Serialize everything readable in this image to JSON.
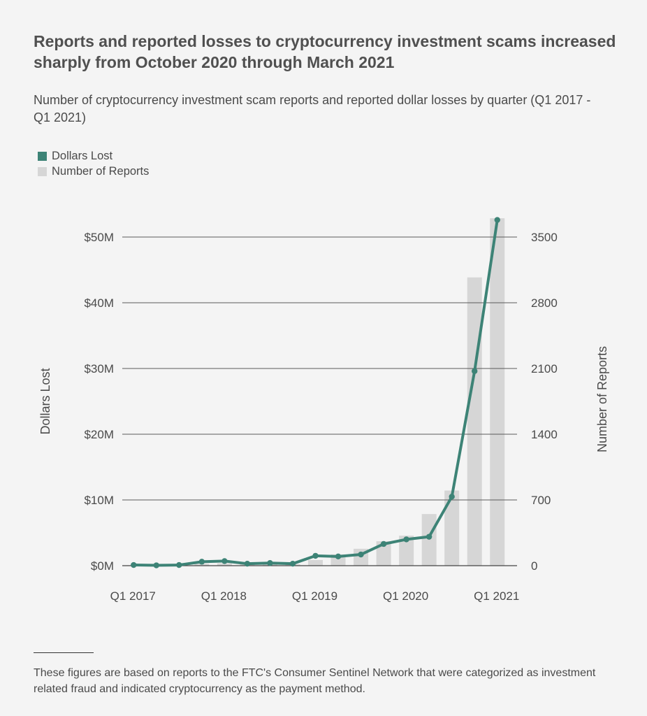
{
  "title": "Reports and reported losses to cryptocurrency investment scams increased sharply from October 2020 through March 2021",
  "subtitle": "Number of cryptocurrency investment scam reports and reported dollar losses by quarter (Q1 2017 - Q1 2021)",
  "legend": {
    "dollars": "Dollars Lost",
    "reports": "Number of Reports"
  },
  "colors": {
    "line": "#3d8376",
    "bar": "#d6d6d6",
    "grid": "#5a5a5a",
    "text": "#4a4a4a"
  },
  "footnote": "These figures are based on reports to the FTC's Consumer Sentinel Network that were categorized as investment related fraud and indicated cryptocurrency as the payment method.",
  "chart_data": {
    "type": "bar+line",
    "categories": [
      "Q1 2017",
      "Q2 2017",
      "Q3 2017",
      "Q4 2017",
      "Q1 2018",
      "Q2 2018",
      "Q3 2018",
      "Q4 2018",
      "Q1 2019",
      "Q2 2019",
      "Q3 2019",
      "Q4 2019",
      "Q1 2020",
      "Q2 2020",
      "Q3 2020",
      "Q4 2020",
      "Q1 2021"
    ],
    "x_tick_labels": [
      "Q1 2017",
      "Q1 2018",
      "Q1 2019",
      "Q1 2020",
      "Q1 2021"
    ],
    "series": [
      {
        "name": "Dollars Lost",
        "kind": "line",
        "axis": "left",
        "values": [
          0.1,
          0.05,
          0.1,
          0.6,
          0.7,
          0.3,
          0.4,
          0.3,
          1.5,
          1.4,
          1.7,
          3.3,
          4.0,
          4.4,
          10.5,
          29.6,
          52.6
        ]
      },
      {
        "name": "Number of Reports",
        "kind": "bar",
        "axis": "right",
        "values": [
          5,
          5,
          5,
          20,
          25,
          15,
          20,
          15,
          60,
          120,
          180,
          260,
          320,
          550,
          800,
          3070,
          3700
        ]
      }
    ],
    "ylabel_left": "Dollars Lost",
    "ylabel_right": "Number of Reports",
    "ylim_left": [
      0,
      50
    ],
    "yticks_left": [
      "$0M",
      "$10M",
      "$20M",
      "$30M",
      "$40M",
      "$50M"
    ],
    "ylim_right": [
      0,
      3500
    ],
    "yticks_right": [
      "0",
      "700",
      "1400",
      "2100",
      "2800",
      "3500"
    ],
    "grid": true,
    "legend_position": "top-left"
  }
}
